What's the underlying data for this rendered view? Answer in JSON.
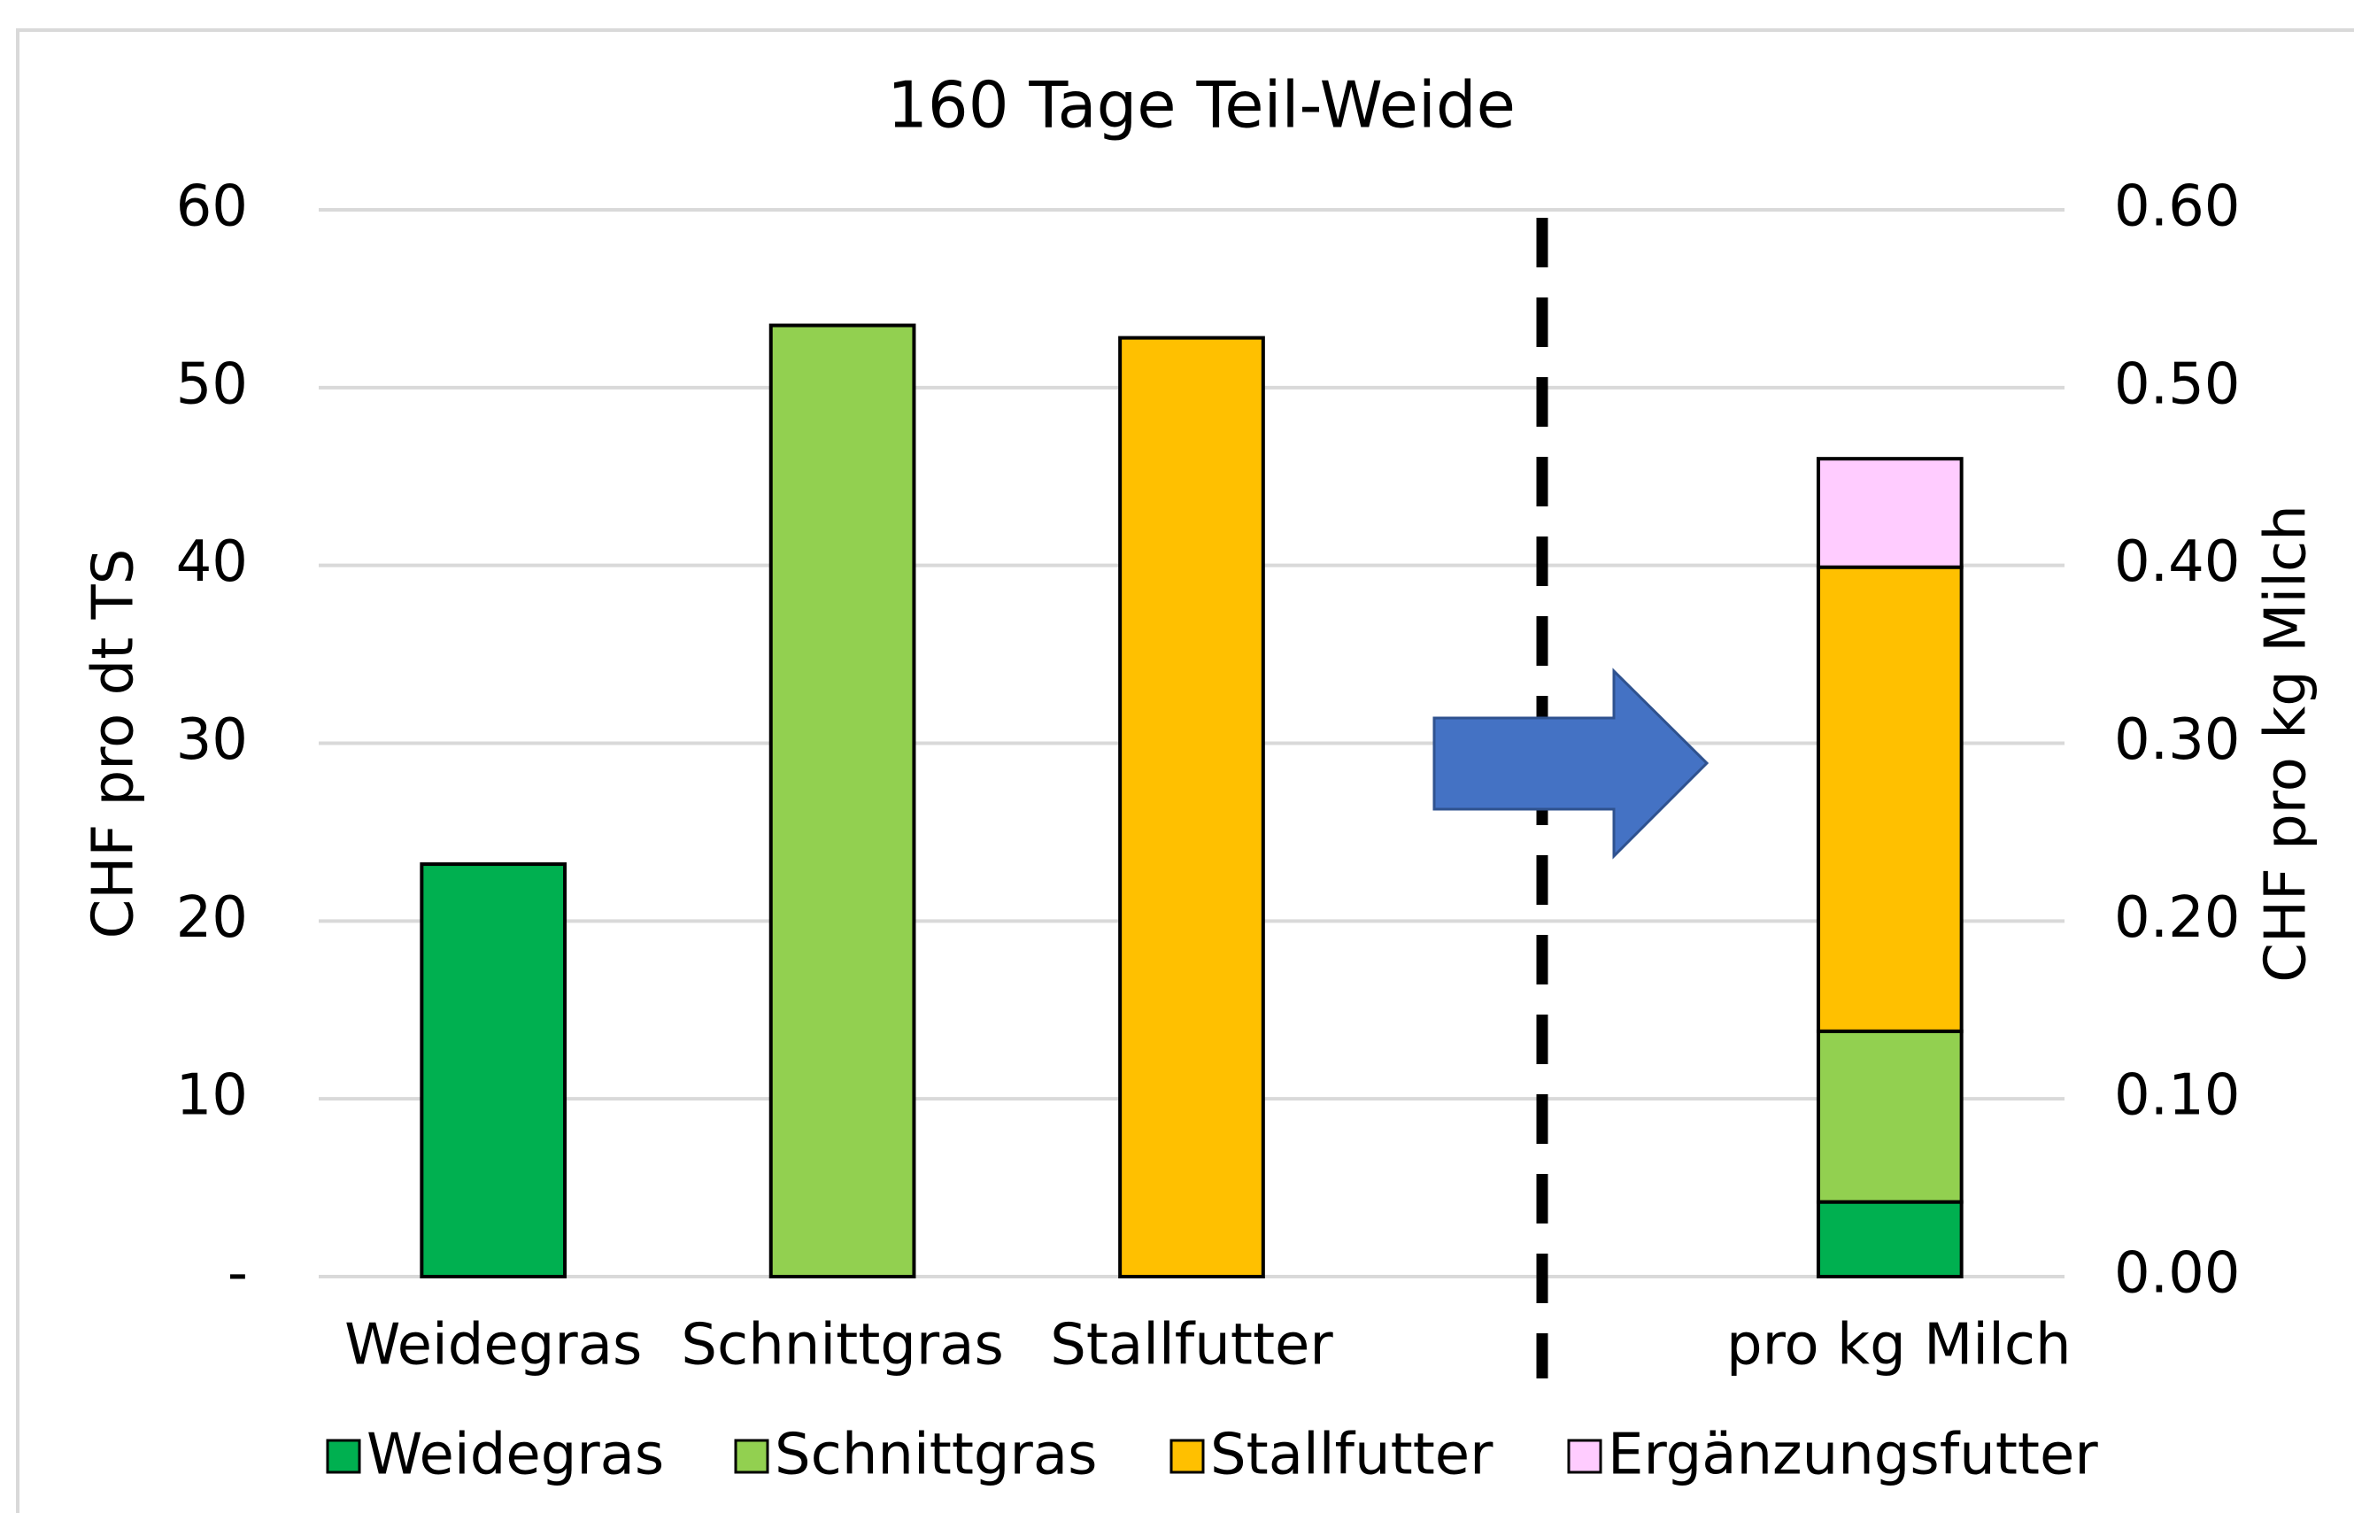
{
  "chart_data": [
    {
      "type": "bar",
      "title": "160 Tage Teil-Weide",
      "y_label": "CHF pro dt TS",
      "categories": [
        "Weidegras",
        "Schnittgras",
        "Stallfutter"
      ],
      "values": [
        23.2,
        53.5,
        52.8
      ],
      "colors": [
        "#00b050",
        "#92d050",
        "#ffc000"
      ],
      "ylim": [
        0,
        60
      ],
      "yticks": [
        {
          "value": 0,
          "label": "-"
        },
        10,
        20,
        30,
        40,
        50,
        60
      ],
      "grid": true
    },
    {
      "type": "stacked_bar",
      "y2_label": "CHF pro kg Milch",
      "categories": [
        "pro kg Milch"
      ],
      "series": [
        {
          "name": "Weidegras",
          "color": "#00b050",
          "values": [
            0.042
          ],
          "axis": "y2"
        },
        {
          "name": "Schnittgras",
          "color": "#92d050",
          "values": [
            0.096
          ],
          "axis": "y2"
        },
        {
          "name": "Stallfutter",
          "color": "#ffc000",
          "values": [
            0.261
          ],
          "axis": "y2"
        },
        {
          "name": "Ergänzungsfutter",
          "color": "#ffccff",
          "values": [
            0.061
          ],
          "axis": "y2"
        }
      ],
      "y2lim": [
        0,
        0.6
      ],
      "y2ticks": [
        {
          "value": 0,
          "label": "0.00"
        },
        {
          "value": 0.1,
          "label": "0.10"
        },
        {
          "value": 0.2,
          "label": "0.20"
        },
        {
          "value": 0.3,
          "label": "0.30"
        },
        {
          "value": 0.4,
          "label": "0.40"
        },
        {
          "value": 0.5,
          "label": "0.50"
        },
        {
          "value": 0.6,
          "label": "0.60"
        }
      ],
      "legend": "bottom"
    }
  ]
}
